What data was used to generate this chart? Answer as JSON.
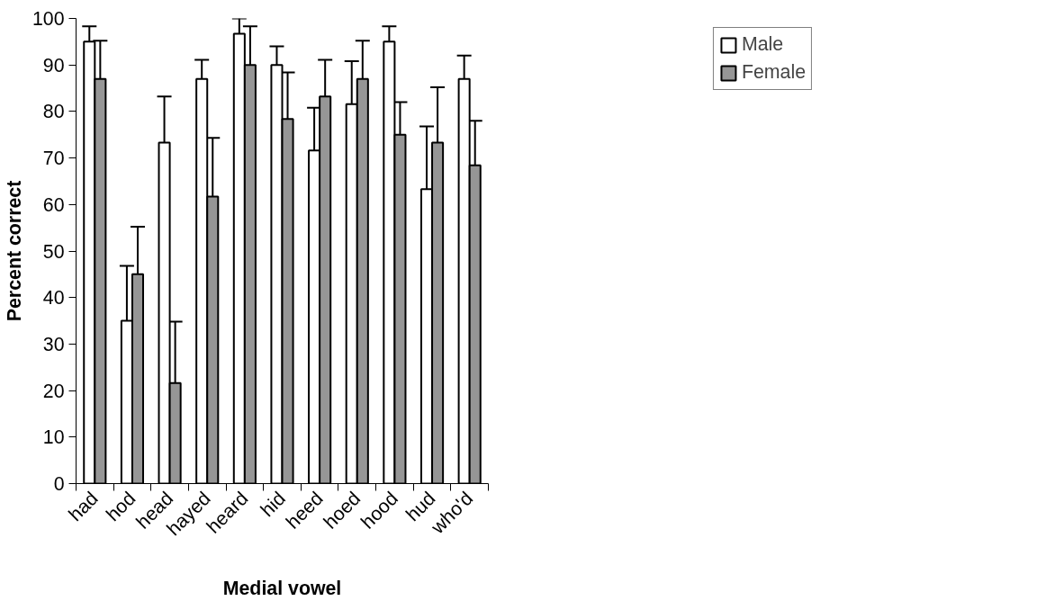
{
  "chart_data": {
    "type": "bar",
    "xlabel": "Medial vowel",
    "ylabel": "Percent correct",
    "categories": [
      "had",
      "hod",
      "head",
      "hayed",
      "heard",
      "hid",
      "heed",
      "hoed",
      "hood",
      "hud",
      "who'd"
    ],
    "series": [
      {
        "name": "Male",
        "color": "#ffffff",
        "values": [
          95,
          35,
          73.3,
          87,
          96.7,
          90,
          71.6,
          81.6,
          95,
          63.3,
          87
        ],
        "errors": [
          [
            95,
            98.3
          ],
          [
            35,
            46.8
          ],
          [
            73.3,
            83.2
          ],
          [
            87,
            91.1
          ],
          [
            96.7,
            100
          ],
          [
            90,
            94
          ],
          [
            71.6,
            80.8
          ],
          [
            81.6,
            90.8
          ],
          [
            95,
            98.3
          ],
          [
            63.3,
            76.8
          ],
          [
            87,
            92
          ]
        ]
      },
      {
        "name": "Female",
        "color": "#969696",
        "values": [
          87,
          45,
          21.6,
          61.7,
          90,
          78.4,
          83.2,
          87,
          75,
          73.3,
          68.4
        ],
        "errors": [
          [
            87,
            95.2
          ],
          [
            45,
            55.2
          ],
          [
            21.6,
            34.8
          ],
          [
            61.7,
            74.3
          ],
          [
            90,
            98.3
          ],
          [
            78.4,
            88.4
          ],
          [
            83.2,
            91.1
          ],
          [
            87,
            95.2
          ],
          [
            75,
            82
          ],
          [
            73.3,
            85.2
          ],
          [
            68.4,
            78
          ]
        ]
      }
    ],
    "ylim": [
      0,
      100
    ],
    "yticks": [
      0,
      10,
      20,
      30,
      40,
      50,
      60,
      70,
      80,
      90,
      100
    ],
    "grid": false,
    "legend": "top right"
  }
}
